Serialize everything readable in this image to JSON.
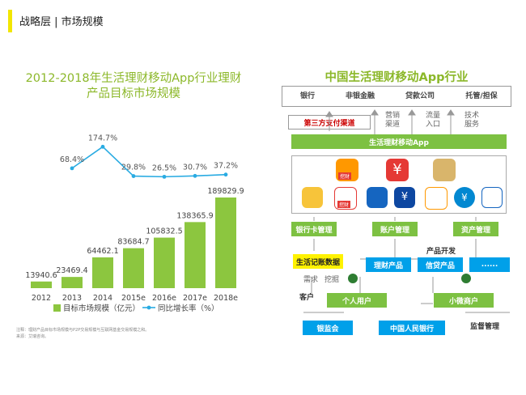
{
  "header": {
    "title": "战略层 | 市场规模"
  },
  "left": {
    "title_line1": "2012-2018年生活理财移动App行业理财",
    "title_line2": "产品目标市场规模",
    "footnote_line1": "注释：理财产品目标市场规模与P2P交易规模与互联网基金交易规模之和。",
    "footnote_line2": "来源：艾瑞咨询。"
  },
  "chart_data": {
    "type": "bar",
    "categories": [
      "2012",
      "2013",
      "2014",
      "2015e",
      "2016e",
      "2017e",
      "2018e"
    ],
    "series": [
      {
        "name": "目标市场规模（亿元）",
        "values": [
          13940.6,
          23469.4,
          64462.1,
          83684.7,
          105832.5,
          138365.9,
          189829.9
        ],
        "labels": [
          "13940.6",
          "23469.4",
          "64462.1",
          "83684.7",
          "105832.5",
          "138365.9",
          "189829.9"
        ]
      },
      {
        "name": "同比增长率（%）",
        "values": [
          null,
          68.4,
          174.7,
          29.8,
          26.5,
          30.7,
          37.2
        ],
        "labels": [
          "",
          "68.4%",
          "174.7%",
          "29.8%",
          "26.5%",
          "30.7%",
          "37.2%"
        ]
      }
    ],
    "bar_color": "#8cc63f",
    "line_color": "#29abe2"
  },
  "right": {
    "title": "中国生活理财移动App行业",
    "top_categories": [
      "银行",
      "非银金融",
      "贷款公司",
      "托管/担保"
    ],
    "third_party": "第三方支付渠道",
    "flows": [
      "营销\n渠道",
      "流量\n入口",
      "技术\n服务"
    ],
    "app_banner": "生活理财移动App",
    "app_icon_labels": [
      "挖财",
      "挖财"
    ],
    "green_boxes": [
      "银行卡管理",
      "账户管理",
      "资产管理"
    ],
    "product_dev": "产品开发",
    "life_record": "生活记账数据",
    "blue_products": [
      "理财产品",
      "信贷产品",
      "......"
    ],
    "demand": "需求",
    "mining": "挖掘",
    "customer": "客户",
    "individual": "个人用户",
    "micro_merchant": "小微商户",
    "regulators": [
      "银监会",
      "中国人民银行"
    ],
    "supervision": "监督管理"
  }
}
